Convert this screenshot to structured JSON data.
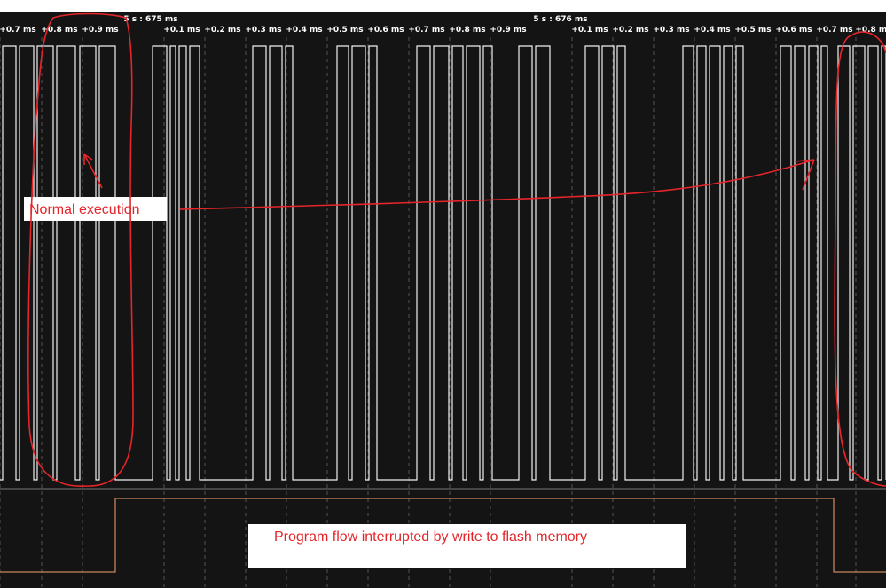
{
  "ruler": {
    "markers": [
      "5 s : 675 ms",
      "5 s : 676 ms"
    ],
    "ticks": [
      "+0.7 ms",
      "+0.8 ms",
      "+0.9 ms",
      "+0.1 ms",
      "+0.2 ms",
      "+0.3 ms",
      "+0.4 ms",
      "+0.5 ms",
      "+0.6 ms",
      "+0.7 ms",
      "+0.8 ms",
      "+0.9 ms",
      "+0.1 ms",
      "+0.2 ms",
      "+0.3 ms",
      "+0.4 ms",
      "+0.5 ms",
      "+0.6 ms",
      "+0.7 ms",
      "+0.8 ms"
    ]
  },
  "annotations": {
    "normal": "Normal execution",
    "flash": "Program flow interrupted by write to flash memory"
  }
}
